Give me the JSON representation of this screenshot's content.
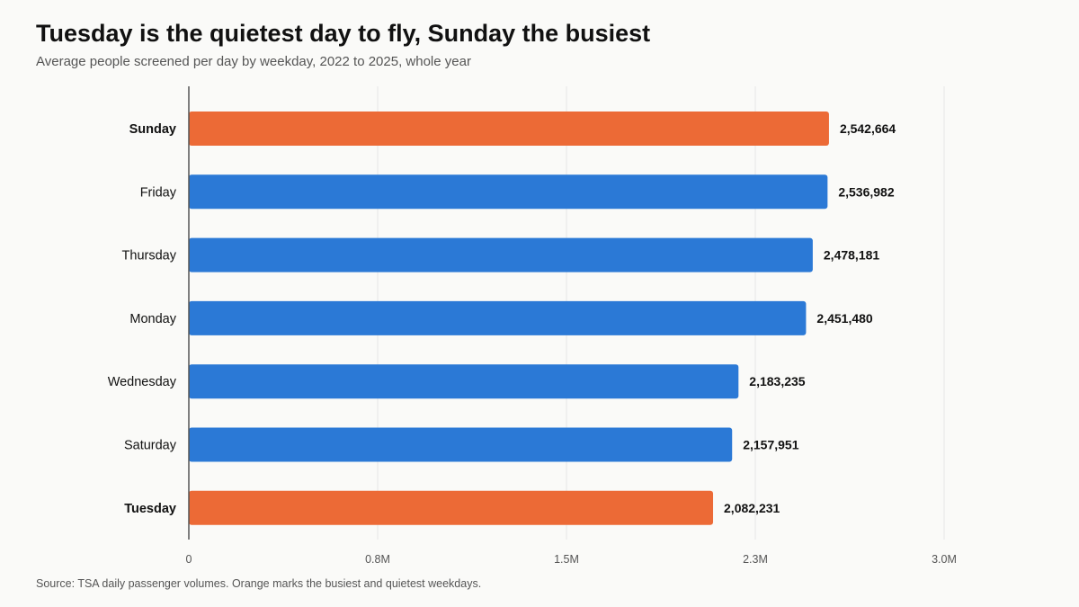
{
  "title": "Tuesday is the quietest day to fly, Sunday the busiest",
  "subtitle": "Average people screened per day by weekday, 2022 to 2025, whole year",
  "source": "Source: TSA daily passenger volumes. Orange marks the busiest and quietest weekdays.",
  "colors": {
    "default_bar": "#2b79d6",
    "highlight_bar": "#ec6a36",
    "gridline": "#e6e6e6",
    "axis": "#555555",
    "text": "#111111"
  },
  "chart_data": {
    "type": "bar",
    "orientation": "horizontal",
    "categories": [
      "Sunday",
      "Friday",
      "Thursday",
      "Monday",
      "Wednesday",
      "Saturday",
      "Tuesday"
    ],
    "values": [
      2542664,
      2536982,
      2478181,
      2451480,
      2183235,
      2157951,
      2082231
    ],
    "value_labels": [
      "2,542,664",
      "2,536,982",
      "2,478,181",
      "2,451,480",
      "2,183,235",
      "2,157,951",
      "2,082,231"
    ],
    "highlighted": [
      "Sunday",
      "Tuesday"
    ],
    "xlim": [
      0,
      3000000
    ],
    "xticks": [
      0,
      750000,
      1500000,
      2250000,
      3000000
    ],
    "xtick_labels": [
      "0",
      "0.8M",
      "1.5M",
      "2.3M",
      "3.0M"
    ],
    "grid": true,
    "legend": "none"
  }
}
